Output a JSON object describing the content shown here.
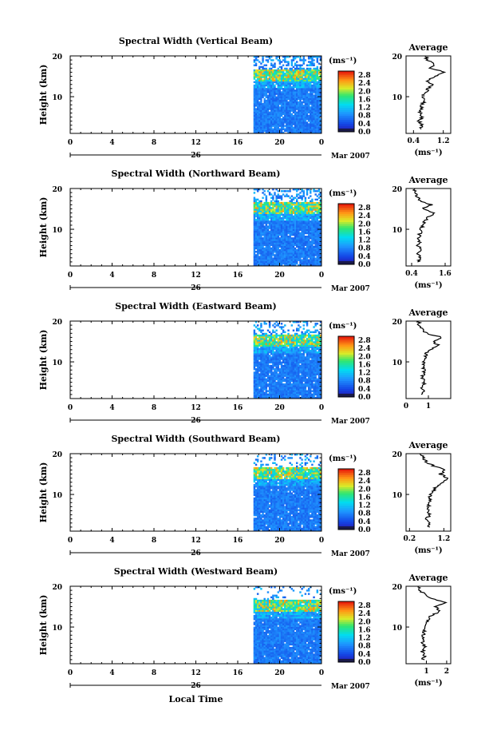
{
  "chart_data": [
    {
      "type": "heatmap",
      "title": "Spectral Width (Vertical Beam)",
      "ylabel": "Height (km)",
      "x_ticks": [
        "0",
        "4",
        "8",
        "12",
        "16",
        "20",
        "0"
      ],
      "xlim": [
        0,
        24
      ],
      "ylim": [
        1,
        20
      ],
      "y_ticks": [
        "20",
        "10"
      ],
      "date_label": "26",
      "month_label": "Mar 2007",
      "data_start_hour": 17.5,
      "colorbar": {
        "unit": "(ms⁻¹)",
        "ticks": [
          "2.8",
          "2.4",
          "2.0",
          "1.6",
          "1.2",
          "0.8",
          "0.4",
          "0.0"
        ],
        "range": [
          0,
          3.0
        ]
      },
      "average": {
        "title": "Average",
        "unit": "(ms⁻¹)",
        "x_ticks": [
          "0.4",
          "1.2"
        ],
        "xlim": [
          0.2,
          1.4
        ],
        "profile": [
          [
            0.6,
            2
          ],
          [
            0.62,
            3
          ],
          [
            0.55,
            4
          ],
          [
            0.65,
            5
          ],
          [
            0.58,
            6
          ],
          [
            0.6,
            7
          ],
          [
            0.62,
            8
          ],
          [
            0.7,
            9
          ],
          [
            0.65,
            10
          ],
          [
            0.72,
            11
          ],
          [
            0.8,
            12
          ],
          [
            0.9,
            13
          ],
          [
            0.75,
            14
          ],
          [
            1.0,
            15
          ],
          [
            1.25,
            16
          ],
          [
            0.85,
            17
          ],
          [
            0.95,
            18
          ],
          [
            0.78,
            19
          ],
          [
            0.72,
            20
          ]
        ]
      }
    },
    {
      "type": "heatmap",
      "title": "Spectral Width (Northward Beam)",
      "ylabel": "Height (km)",
      "x_ticks": [
        "0",
        "4",
        "8",
        "12",
        "16",
        "20",
        "0"
      ],
      "xlim": [
        0,
        24
      ],
      "ylim": [
        1,
        20
      ],
      "y_ticks": [
        "20",
        "10"
      ],
      "date_label": "26",
      "month_label": "Mar 2007",
      "data_start_hour": 17.5,
      "colorbar": {
        "unit": "(ms⁻¹)",
        "ticks": [
          "2.8",
          "2.4",
          "2.0",
          "1.6",
          "1.2",
          "0.8",
          "0.4",
          "0.0"
        ],
        "range": [
          0,
          3.0
        ]
      },
      "average": {
        "title": "Average",
        "unit": "(ms⁻¹)",
        "x_ticks": [
          "0.4",
          "1.6"
        ],
        "xlim": [
          0.2,
          1.8
        ],
        "profile": [
          [
            0.65,
            2
          ],
          [
            0.7,
            3
          ],
          [
            0.6,
            4
          ],
          [
            0.72,
            5
          ],
          [
            0.62,
            6
          ],
          [
            0.68,
            7
          ],
          [
            0.65,
            8
          ],
          [
            0.7,
            9
          ],
          [
            0.75,
            10
          ],
          [
            0.8,
            11
          ],
          [
            0.85,
            12
          ],
          [
            1.0,
            13
          ],
          [
            1.2,
            14
          ],
          [
            0.8,
            15
          ],
          [
            1.1,
            16
          ],
          [
            0.7,
            17
          ],
          [
            0.6,
            18
          ],
          [
            0.55,
            19
          ],
          [
            0.5,
            20
          ]
        ]
      }
    },
    {
      "type": "heatmap",
      "title": "Spectral Width (Eastward Beam)",
      "ylabel": "Height (km)",
      "x_ticks": [
        "0",
        "4",
        "8",
        "12",
        "16",
        "20",
        "0"
      ],
      "xlim": [
        0,
        24
      ],
      "ylim": [
        1,
        20
      ],
      "y_ticks": [
        "20",
        "10"
      ],
      "date_label": "26",
      "month_label": "Mar 2007",
      "data_start_hour": 17.5,
      "colorbar": {
        "unit": "(ms⁻¹)",
        "ticks": [
          "2.8",
          "2.4",
          "2.0",
          "1.6",
          "1.2",
          "0.8",
          "0.4",
          "0.0"
        ],
        "range": [
          0,
          3.0
        ]
      },
      "average": {
        "title": "Average",
        "unit": "",
        "x_ticks": [
          "0",
          "1"
        ],
        "xlim": [
          0,
          2
        ],
        "profile": [
          [
            0.75,
            2
          ],
          [
            0.8,
            3
          ],
          [
            0.7,
            4
          ],
          [
            0.85,
            5
          ],
          [
            0.72,
            6
          ],
          [
            0.78,
            7
          ],
          [
            0.82,
            8
          ],
          [
            0.75,
            9
          ],
          [
            0.8,
            10
          ],
          [
            0.85,
            11
          ],
          [
            0.9,
            12
          ],
          [
            1.1,
            13
          ],
          [
            1.5,
            14
          ],
          [
            1.2,
            15
          ],
          [
            1.6,
            16
          ],
          [
            0.9,
            17
          ],
          [
            0.7,
            18
          ],
          [
            0.6,
            19
          ],
          [
            0.55,
            20
          ]
        ]
      }
    },
    {
      "type": "heatmap",
      "title": "Spectral Width (Southward Beam)",
      "ylabel": "Height (km)",
      "x_ticks": [
        "0",
        "4",
        "8",
        "12",
        "16",
        "20",
        "0"
      ],
      "xlim": [
        0,
        24
      ],
      "ylim": [
        1,
        20
      ],
      "y_ticks": [
        "20",
        "10"
      ],
      "date_label": "26",
      "month_label": "Mar 2007",
      "data_start_hour": 17.5,
      "colorbar": {
        "unit": "(ms⁻¹)",
        "ticks": [
          "2.8",
          "2.4",
          "2.0",
          "1.6",
          "1.2",
          "0.8",
          "0.4",
          "0.0"
        ],
        "range": [
          0,
          3.0
        ]
      },
      "average": {
        "title": "Average",
        "unit": "(ms⁻¹)",
        "x_ticks": [
          "0.2",
          "1.2"
        ],
        "xlim": [
          0.1,
          1.4
        ],
        "profile": [
          [
            0.75,
            2
          ],
          [
            0.8,
            3
          ],
          [
            0.7,
            4
          ],
          [
            0.78,
            5
          ],
          [
            0.72,
            6
          ],
          [
            0.75,
            7
          ],
          [
            0.8,
            8
          ],
          [
            0.78,
            9
          ],
          [
            0.82,
            10
          ],
          [
            0.9,
            11
          ],
          [
            1.0,
            12
          ],
          [
            1.15,
            13
          ],
          [
            1.3,
            14
          ],
          [
            1.1,
            15
          ],
          [
            1.25,
            16
          ],
          [
            0.9,
            17
          ],
          [
            0.7,
            18
          ],
          [
            0.6,
            19
          ],
          [
            0.5,
            20
          ]
        ]
      }
    },
    {
      "type": "heatmap",
      "title": "Spectral Width (Westward Beam)",
      "ylabel": "Height (km)",
      "xlabel": "Local Time",
      "x_ticks": [
        "0",
        "4",
        "8",
        "12",
        "16",
        "20",
        "0"
      ],
      "xlim": [
        0,
        24
      ],
      "ylim": [
        1,
        20
      ],
      "y_ticks": [
        "20",
        "10"
      ],
      "date_label": "26",
      "month_label": "Mar 2007",
      "data_start_hour": 17.5,
      "colorbar": {
        "unit": "(ms⁻¹)",
        "ticks": [
          "2.8",
          "2.4",
          "2.0",
          "1.6",
          "1.2",
          "0.8",
          "0.4",
          "0.0"
        ],
        "range": [
          0,
          3.0
        ]
      },
      "average": {
        "title": "Average",
        "unit": "(ms⁻¹)",
        "x_ticks": [
          "1",
          "2"
        ],
        "xlim": [
          0,
          2.2
        ],
        "profile": [
          [
            0.85,
            2
          ],
          [
            0.9,
            3
          ],
          [
            0.8,
            4
          ],
          [
            0.95,
            5
          ],
          [
            0.82,
            6
          ],
          [
            0.88,
            7
          ],
          [
            0.85,
            8
          ],
          [
            0.9,
            9
          ],
          [
            0.95,
            10
          ],
          [
            1.0,
            11
          ],
          [
            1.1,
            12
          ],
          [
            1.3,
            13
          ],
          [
            1.7,
            14
          ],
          [
            1.4,
            15
          ],
          [
            2.0,
            16
          ],
          [
            1.2,
            17
          ],
          [
            0.9,
            18
          ],
          [
            0.7,
            19
          ],
          [
            0.6,
            20
          ]
        ]
      }
    }
  ]
}
